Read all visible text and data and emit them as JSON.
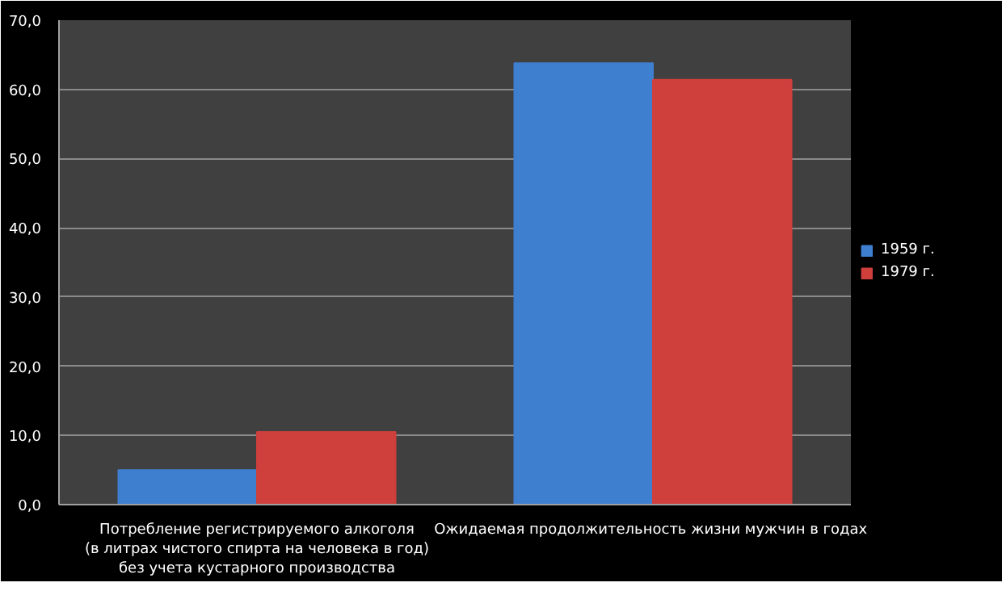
{
  "chart_data": {
    "type": "bar",
    "categories": [
      "Потребление регистрируемого алкоголя\n(в литрах чистого спирта на человека в год)\nбез учета кустарного производства",
      "Ожидаемая продолжительность  жизни мужчин в годах"
    ],
    "series": [
      {
        "name": "1959 г.",
        "color": "#3f7fd0",
        "values": [
          5.0,
          63.8
        ]
      },
      {
        "name": "1979 г.",
        "color": "#cf3f3c",
        "values": [
          10.5,
          61.4
        ]
      }
    ],
    "ylim": [
      0,
      70
    ],
    "yticks": [
      {
        "value": 0,
        "label": "0,0"
      },
      {
        "value": 10,
        "label": "10,0"
      },
      {
        "value": 20,
        "label": "20,0"
      },
      {
        "value": 30,
        "label": "30,0"
      },
      {
        "value": 40,
        "label": "40,0"
      },
      {
        "value": 50,
        "label": "50,0"
      },
      {
        "value": 60,
        "label": "60,0"
      },
      {
        "value": 70,
        "label": "70,0"
      }
    ],
    "grid": "y",
    "legend": "right"
  }
}
